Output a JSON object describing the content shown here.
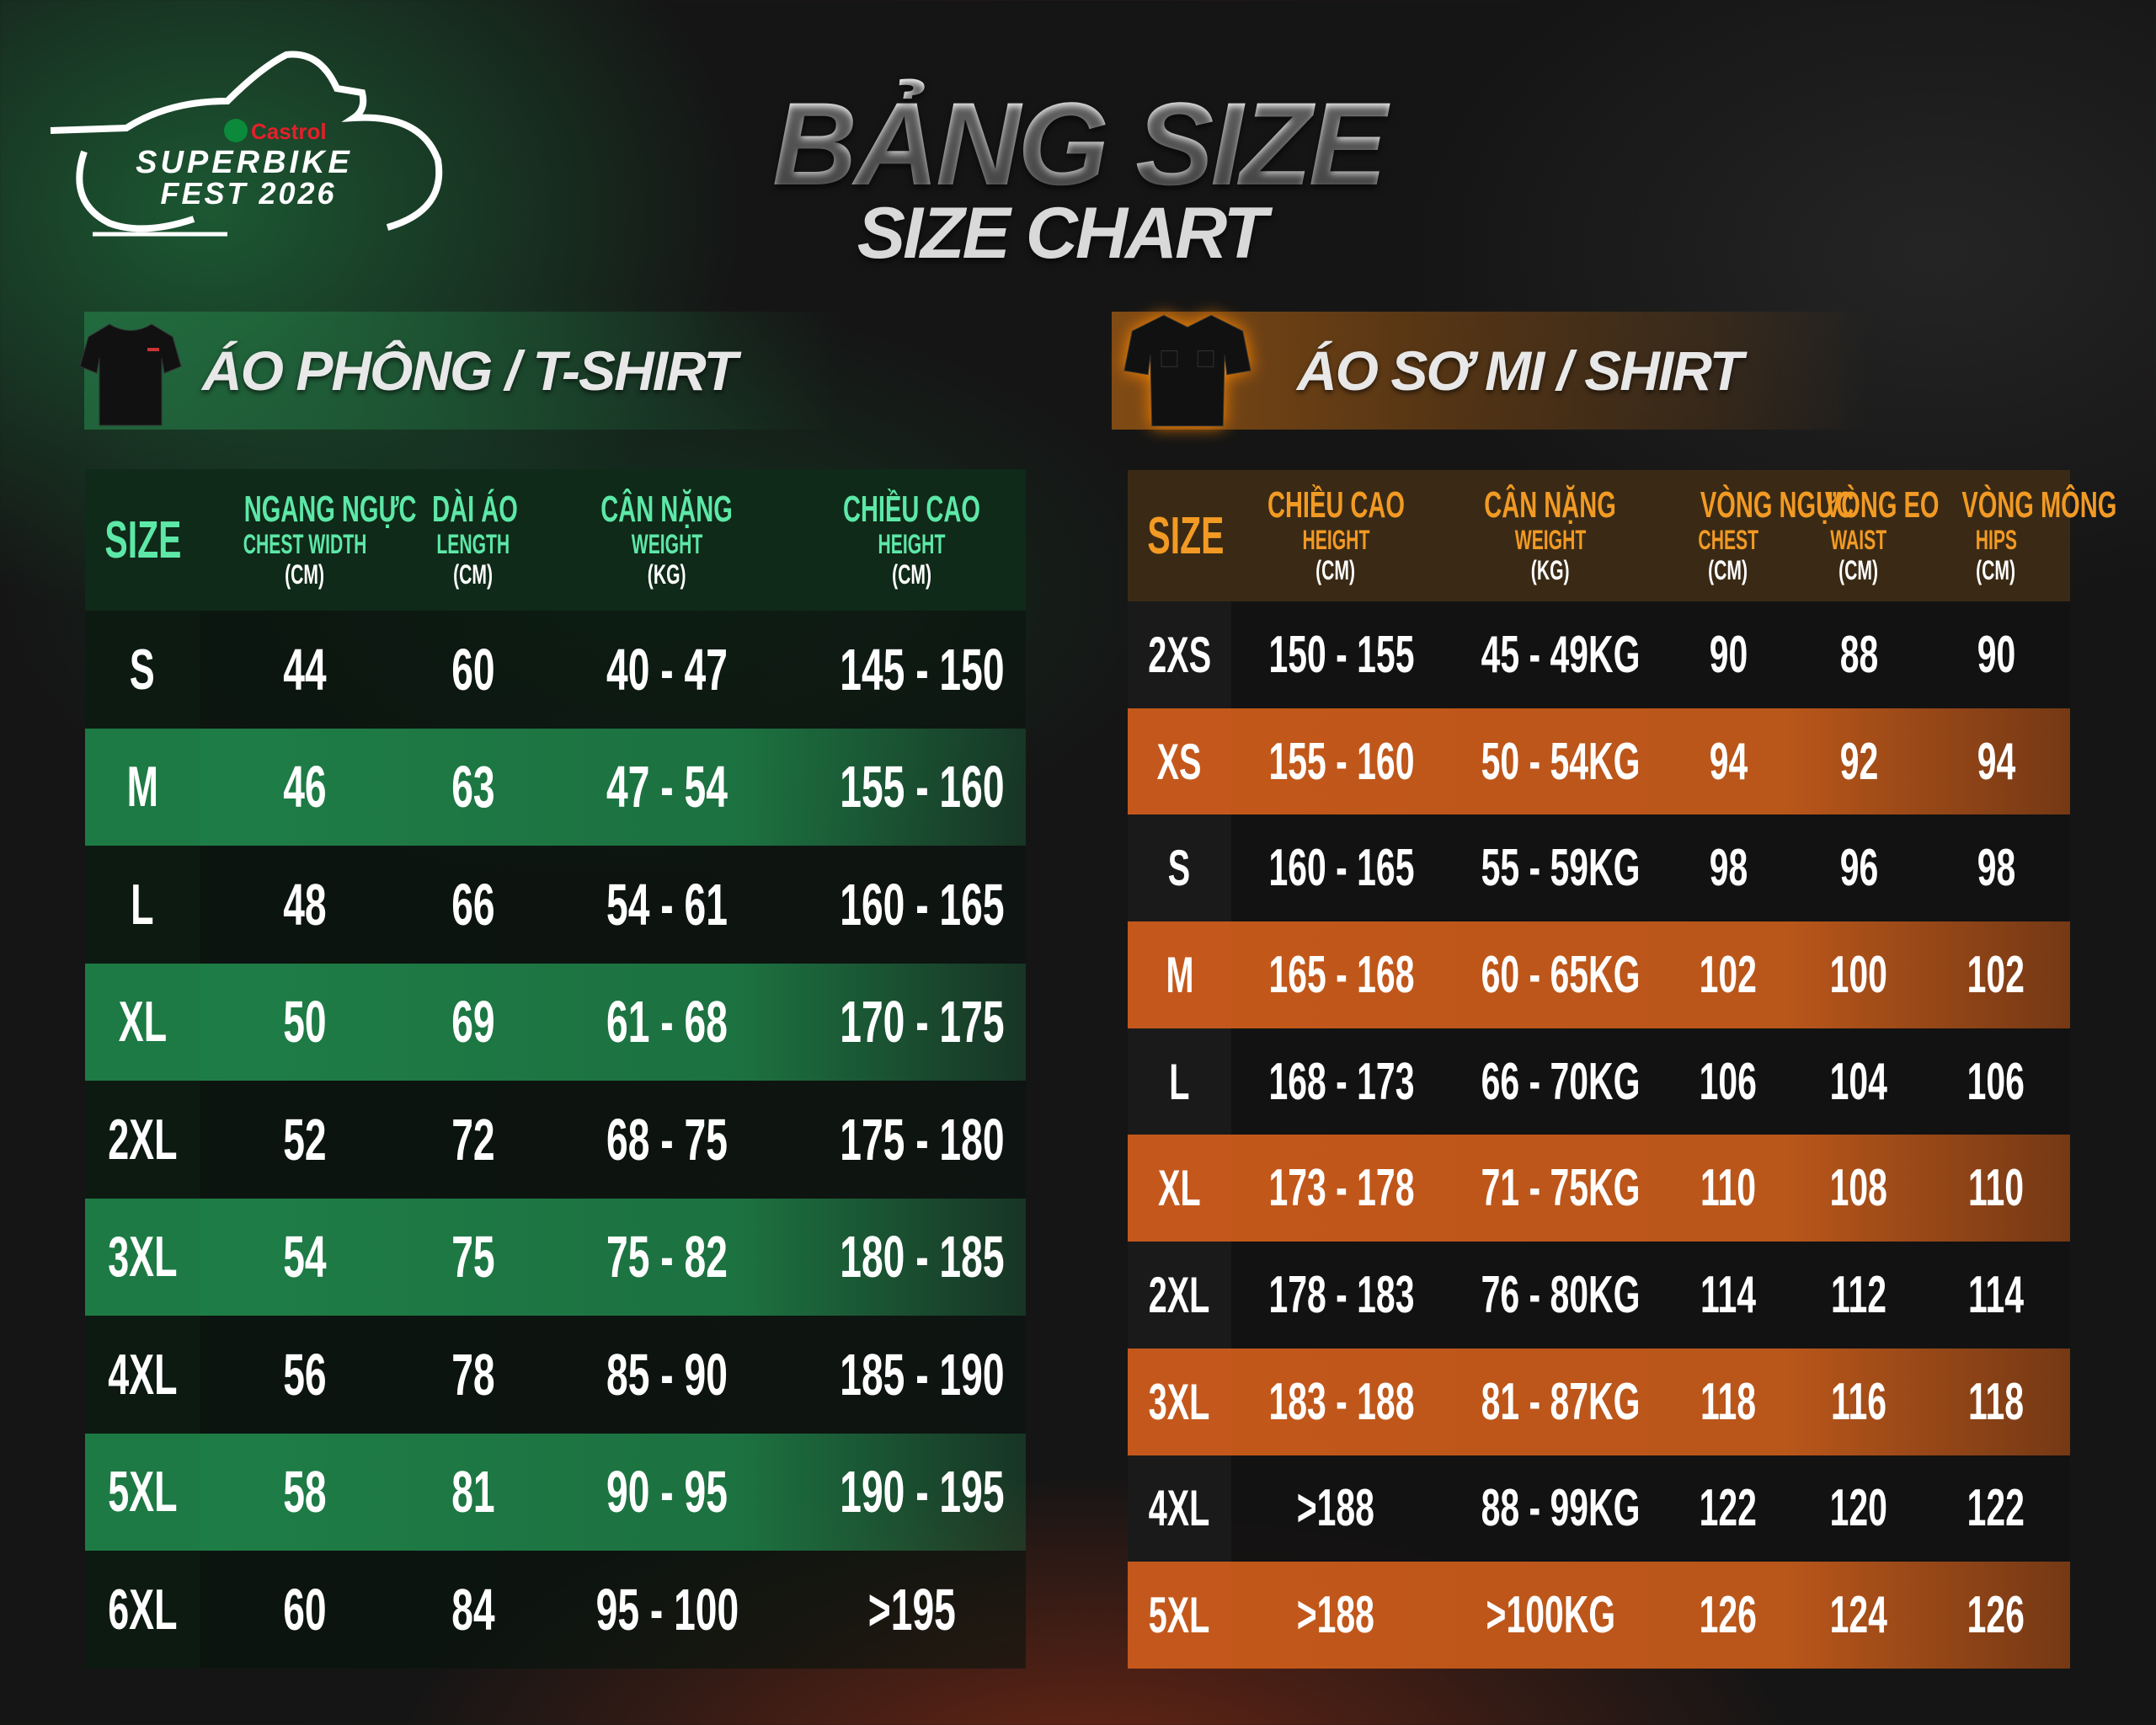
{
  "logo": {
    "brand": "Castrol",
    "line1": "SUPERBIKE",
    "line2": "FEST 2026"
  },
  "title": {
    "main": "BẢNG SIZE",
    "sub": "SIZE CHART"
  },
  "colors": {
    "green_accent": "#5de8a8",
    "green_row": "#1f8048",
    "orange_accent": "#f29a24",
    "orange_row": "#c4571a",
    "castrol_red": "#e3202a"
  },
  "tshirt": {
    "banner": "ÁO PHÔNG / T-SHIRT",
    "headers": [
      {
        "vi": "SIZE",
        "en": "",
        "unit": ""
      },
      {
        "vi": "NGANG NGỰC",
        "en": "CHEST WIDTH",
        "unit": "(CM)"
      },
      {
        "vi": "DÀI ÁO",
        "en": "LENGTH",
        "unit": "(CM)"
      },
      {
        "vi": "CÂN NẶNG",
        "en": "WEIGHT",
        "unit": "(KG)"
      },
      {
        "vi": "CHIỀU CAO",
        "en": "HEIGHT",
        "unit": "(CM)"
      }
    ],
    "rows": [
      [
        "S",
        "44",
        "60",
        "40 - 47",
        "145 - 150"
      ],
      [
        "M",
        "46",
        "63",
        "47 - 54",
        "155 - 160"
      ],
      [
        "L",
        "48",
        "66",
        "54 - 61",
        "160 - 165"
      ],
      [
        "XL",
        "50",
        "69",
        "61 - 68",
        "170 - 175"
      ],
      [
        "2XL",
        "52",
        "72",
        "68 - 75",
        "175 - 180"
      ],
      [
        "3XL",
        "54",
        "75",
        "75 - 82",
        "180 - 185"
      ],
      [
        "4XL",
        "56",
        "78",
        "85 - 90",
        "185 - 190"
      ],
      [
        "5XL",
        "58",
        "81",
        "90 - 95",
        "190 - 195"
      ],
      [
        "6XL",
        "60",
        "84",
        "95 - 100",
        ">195"
      ]
    ]
  },
  "shirt": {
    "banner": "ÁO SƠ MI / SHIRT",
    "headers": [
      {
        "vi": "SIZE",
        "en": "",
        "unit": ""
      },
      {
        "vi": "CHIỀU CAO",
        "en": "HEIGHT",
        "unit": "(CM)"
      },
      {
        "vi": "CÂN NẶNG",
        "en": "WEIGHT",
        "unit": "(KG)"
      },
      {
        "vi": "VÒNG NGỰC",
        "en": "CHEST",
        "unit": "(CM)"
      },
      {
        "vi": "VÒNG EO",
        "en": "WAIST",
        "unit": "(CM)"
      },
      {
        "vi": "VÒNG MÔNG",
        "en": "HIPS",
        "unit": "(CM)"
      }
    ],
    "rows": [
      [
        "2XS",
        "150 - 155",
        "45 - 49KG",
        "90",
        "88",
        "90"
      ],
      [
        "XS",
        "155 - 160",
        "50 - 54KG",
        "94",
        "92",
        "94"
      ],
      [
        "S",
        "160 - 165",
        "55 - 59KG",
        "98",
        "96",
        "98"
      ],
      [
        "M",
        "165 - 168",
        "60 - 65KG",
        "102",
        "100",
        "102"
      ],
      [
        "L",
        "168 - 173",
        "66 - 70KG",
        "106",
        "104",
        "106"
      ],
      [
        "XL",
        "173 - 178",
        "71 - 75KG",
        "110",
        "108",
        "110"
      ],
      [
        "2XL",
        "178 - 183",
        "76 - 80KG",
        "114",
        "112",
        "114"
      ],
      [
        "3XL",
        "183 - 188",
        "81 - 87KG",
        "118",
        "116",
        "118"
      ],
      [
        "4XL",
        ">188",
        "88 - 99KG",
        "122",
        "120",
        "122"
      ],
      [
        "5XL",
        ">188",
        ">100KG",
        "126",
        "124",
        "126"
      ]
    ]
  }
}
